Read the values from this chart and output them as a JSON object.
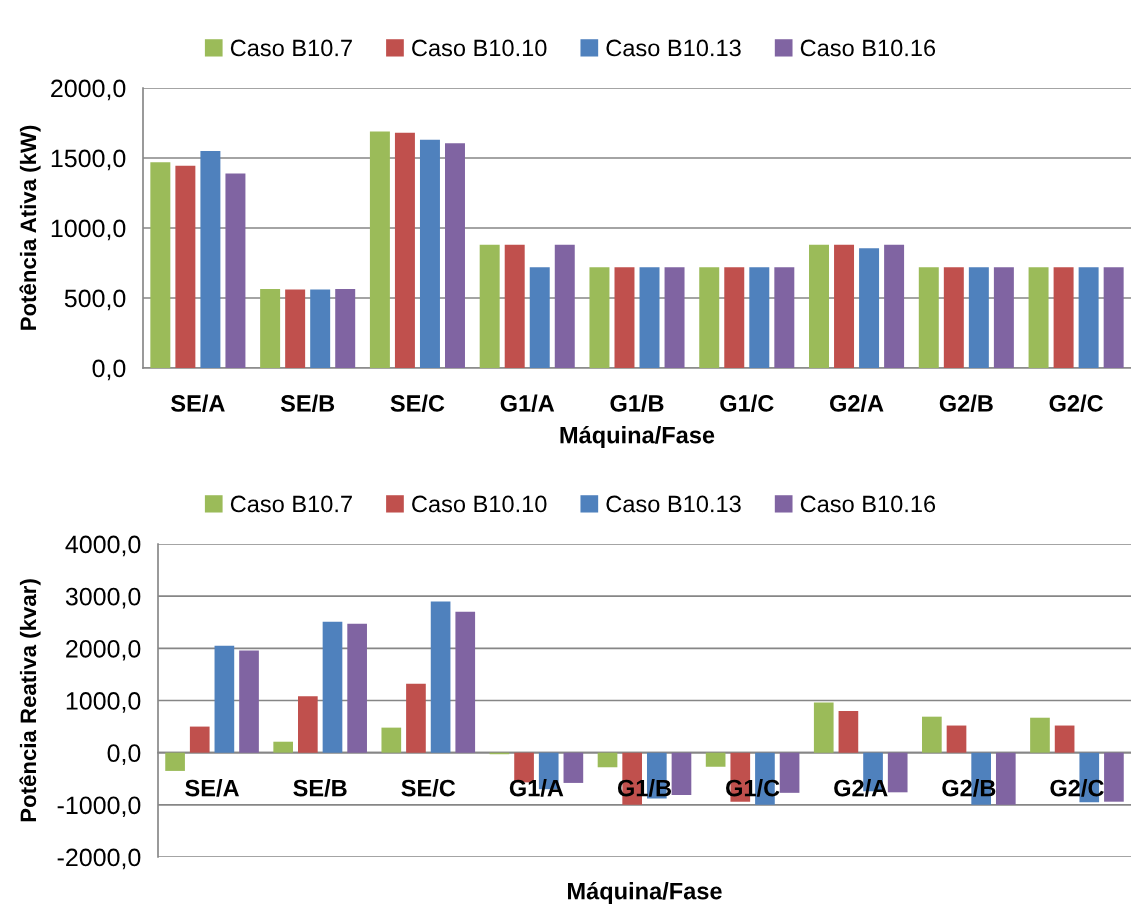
{
  "chart_data": [
    {
      "type": "bar",
      "xlabel": "Máquina/Fase",
      "ylabel": "Potência Ativa (kW)",
      "categories": [
        "SE/A",
        "SE/B",
        "SE/C",
        "G1/A",
        "G1/B",
        "G1/C",
        "G2/A",
        "G2/B",
        "G2/C"
      ],
      "series": [
        {
          "name": "Caso B10.7",
          "color": "#9bbb59",
          "values": [
            1470,
            565,
            1690,
            880,
            720,
            720,
            880,
            720,
            720
          ]
        },
        {
          "name": "Caso B10.10",
          "color": "#c0504d",
          "values": [
            1445,
            560,
            1680,
            880,
            720,
            720,
            880,
            720,
            720
          ]
        },
        {
          "name": "Caso B10.13",
          "color": "#4f81bd",
          "values": [
            1550,
            560,
            1630,
            720,
            720,
            720,
            855,
            720,
            720
          ]
        },
        {
          "name": "Caso B10.16",
          "color": "#8064a2",
          "values": [
            1390,
            565,
            1605,
            880,
            720,
            720,
            880,
            720,
            720
          ]
        }
      ],
      "ylim": [
        0,
        2000
      ],
      "yticks": [
        {
          "value": 0,
          "label": "0,0"
        },
        {
          "value": 500,
          "label": "500,0"
        },
        {
          "value": 1000,
          "label": "1000,0"
        },
        {
          "value": 1500,
          "label": "1500,0"
        },
        {
          "value": 2000,
          "label": "2000,0"
        }
      ],
      "grid": "y",
      "legend": "top"
    },
    {
      "type": "bar",
      "xlabel": "Máquina/Fase",
      "ylabel": "Potência Reativa (kvar)",
      "categories": [
        "SE/A",
        "SE/B",
        "SE/C",
        "G1/A",
        "G1/B",
        "G1/C",
        "G2/A",
        "G2/B",
        "G2/C"
      ],
      "series": [
        {
          "name": "Caso B10.7",
          "color": "#9bbb59",
          "values": [
            -350,
            210,
            480,
            -30,
            -280,
            -270,
            960,
            690,
            670
          ]
        },
        {
          "name": "Caso B10.10",
          "color": "#c0504d",
          "values": [
            500,
            1080,
            1320,
            -570,
            -1000,
            -940,
            800,
            520,
            520
          ]
        },
        {
          "name": "Caso B10.13",
          "color": "#4f81bd",
          "values": [
            2050,
            2510,
            2900,
            -700,
            -880,
            -1000,
            -740,
            -1000,
            -950
          ]
        },
        {
          "name": "Caso B10.16",
          "color": "#8064a2",
          "values": [
            1960,
            2470,
            2700,
            -580,
            -810,
            -770,
            -760,
            -1000,
            -940
          ]
        }
      ],
      "ylim": [
        -2000,
        4000
      ],
      "yticks": [
        {
          "value": -2000,
          "label": "-2000,0"
        },
        {
          "value": -1000,
          "label": "-1000,0"
        },
        {
          "value": 0,
          "label": "0,0"
        },
        {
          "value": 1000,
          "label": "1000,0"
        },
        {
          "value": 2000,
          "label": "2000,0"
        },
        {
          "value": 3000,
          "label": "3000,0"
        },
        {
          "value": 4000,
          "label": "4000,0"
        }
      ],
      "grid": "y",
      "legend": "top"
    }
  ]
}
